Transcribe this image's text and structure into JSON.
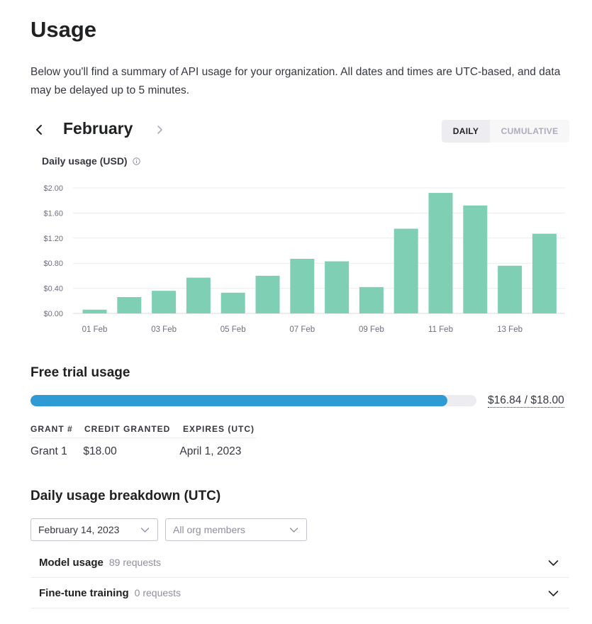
{
  "page": {
    "title": "Usage",
    "description": "Below you'll find a summary of API usage for your organization. All dates and times are UTC-based, and data may be delayed up to 5 minutes."
  },
  "month_nav": {
    "month": "February",
    "prev_icon": "chevron-left-icon",
    "next_icon": "chevron-right-icon"
  },
  "view_toggle": {
    "daily_label": "DAILY",
    "cumulative_label": "CUMULATIVE",
    "selected": "DAILY"
  },
  "chart_label": "Daily usage (USD)",
  "chart_data": {
    "type": "bar",
    "categories": [
      "01 Feb",
      "02 Feb",
      "03 Feb",
      "04 Feb",
      "05 Feb",
      "06 Feb",
      "07 Feb",
      "08 Feb",
      "09 Feb",
      "10 Feb",
      "11 Feb",
      "12 Feb",
      "13 Feb",
      "14 Feb"
    ],
    "values": [
      0.06,
      0.26,
      0.36,
      0.57,
      0.33,
      0.6,
      0.87,
      0.83,
      0.42,
      1.35,
      1.92,
      1.72,
      0.76,
      1.27
    ],
    "x_tick_labels": [
      "01 Feb",
      "03 Feb",
      "05 Feb",
      "07 Feb",
      "09 Feb",
      "11 Feb",
      "13 Feb"
    ],
    "y_tick_labels": [
      "$0.00",
      "$0.40",
      "$0.80",
      "$1.20",
      "$1.60",
      "$2.00"
    ],
    "y_ticks": [
      0,
      0.4,
      0.8,
      1.2,
      1.6,
      2.0
    ],
    "ylim": [
      0,
      2.0
    ],
    "grid": true,
    "bar_color": "#7fcfb4",
    "title": "",
    "xlabel": "",
    "ylabel": ""
  },
  "free_trial": {
    "heading": "Free trial usage",
    "used": 16.84,
    "total": 18.0,
    "progress_fraction": 0.9356,
    "progress_text": "$16.84 / $18.00",
    "bar_color": "#2f9bd5",
    "columns": [
      "GRANT #",
      "CREDIT GRANTED",
      "EXPIRES (UTC)"
    ],
    "grants": [
      {
        "name": "Grant 1",
        "credit": "$18.00",
        "expires": "April 1, 2023"
      }
    ]
  },
  "breakdown": {
    "heading": "Daily usage breakdown (UTC)",
    "date_select": "February 14, 2023",
    "members_select_placeholder": "All org members",
    "sections": [
      {
        "title": "Model usage",
        "subtitle": "89 requests"
      },
      {
        "title": "Fine-tune training",
        "subtitle": "0 requests"
      }
    ]
  }
}
